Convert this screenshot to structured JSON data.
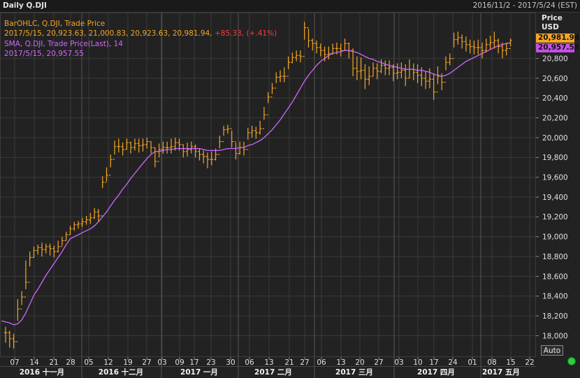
{
  "header": {
    "title": "Daily Q.DJI",
    "range": "2016/11/2 - 2017/5/24 (EST)"
  },
  "legend": {
    "ohlc_label": "BarOHLC, Q.DJI, Trade Price",
    "ohlc_values": "2017/5/15, 20,923.63, 21,000.83, 20,923.63, 20,981.94, ",
    "ohlc_change": "+85.33, (+.41%)",
    "sma_label": "SMA, Q.DJI, Trade Price(Last),  14",
    "sma_values": "2017/5/15, 20,957.55"
  },
  "axis": {
    "price_title": "Price",
    "currency": "USD",
    "auto_label": "Auto"
  },
  "badges": {
    "last_price": "20,981.94",
    "sma_price": "20,957.55"
  },
  "colors": {
    "ohlc": "#f5a623",
    "sma": "#d166ff",
    "positive_change": "#ff3b3b",
    "status": "#2ecc40"
  },
  "chart_data": {
    "type": "ohlc",
    "title": "Daily Q.DJI",
    "ylabel": "Price USD",
    "ylim": [
      17900,
      21150
    ],
    "y_ticks": [
      18000,
      18200,
      18400,
      18600,
      18800,
      19000,
      19200,
      19400,
      19600,
      19800,
      20000,
      20200,
      20400,
      20600,
      20800
    ],
    "x_ticks": [
      "07",
      "14",
      "21",
      "28",
      "05",
      "12",
      "19",
      "27",
      "03",
      "09",
      "17",
      "23",
      "30",
      "06",
      "13",
      "21",
      "27",
      "06",
      "13",
      "20",
      "27",
      "03",
      "10",
      "17",
      "24",
      "01",
      "08",
      "15",
      "22"
    ],
    "month_labels": [
      "2016 十一月",
      "2016 十二月",
      "2017 一月",
      "2017 二月",
      "2017 三月",
      "2017 四月",
      "2017 五月"
    ],
    "series": [
      {
        "name": "BarOHLC",
        "close": [
          18030,
          17970,
          17940,
          18270,
          18390,
          18540,
          18790,
          18860,
          18890,
          18870,
          18900,
          18880,
          18850,
          18900,
          18960,
          19020,
          19080,
          19120,
          19130,
          19150,
          19170,
          19190,
          19250,
          19210,
          19550,
          19620,
          19780,
          19910,
          19910,
          19880,
          19950,
          19900,
          19940,
          19920,
          19930,
          19960,
          19900,
          19760,
          19880,
          19900,
          19900,
          19910,
          19950,
          19930,
          19860,
          19880,
          19910,
          19860,
          19830,
          19810,
          19780,
          19780,
          19830,
          19960,
          20080,
          20090,
          19960,
          19840,
          19900,
          19880,
          20050,
          20070,
          20050,
          20090,
          20230,
          20410,
          20500,
          20610,
          20620,
          20620,
          20760,
          20810,
          20830,
          20820,
          21110,
          20980,
          20950,
          20910,
          20880,
          20840,
          20850,
          20900,
          20900,
          20880,
          20950,
          20880,
          20700,
          20670,
          20680,
          20590,
          20620,
          20700,
          20670,
          20730,
          20700,
          20710,
          20650,
          20660,
          20680,
          20600,
          20690,
          20660,
          20630,
          20600,
          20570,
          20590,
          20460,
          20620,
          20560,
          20760,
          20800,
          20990,
          21010,
          20970,
          20940,
          20920,
          20910,
          20910,
          20880,
          20940,
          20960,
          20980,
          20920,
          20880,
          20900,
          20982
        ],
        "high": [
          18090,
          18050,
          18020,
          18370,
          18450,
          18760,
          18850,
          18900,
          18920,
          18940,
          18930,
          18930,
          18910,
          18960,
          19000,
          19050,
          19110,
          19150,
          19160,
          19190,
          19210,
          19240,
          19290,
          19280,
          19610,
          19700,
          19830,
          19970,
          19990,
          19950,
          19990,
          19960,
          19990,
          19990,
          19990,
          20000,
          19960,
          19900,
          19940,
          19960,
          19960,
          19990,
          20000,
          19990,
          19930,
          19950,
          19960,
          19930,
          19890,
          19870,
          19850,
          19860,
          19890,
          20020,
          20120,
          20130,
          20070,
          19950,
          19960,
          19960,
          20100,
          20120,
          20110,
          20170,
          20310,
          20460,
          20550,
          20660,
          20680,
          20710,
          20820,
          20860,
          20880,
          20880,
          21170,
          21100,
          21000,
          20980,
          20950,
          20920,
          20920,
          20950,
          20960,
          20950,
          21000,
          20960,
          20900,
          20820,
          20810,
          20740,
          20720,
          20760,
          20750,
          20790,
          20780,
          20780,
          20740,
          20750,
          20760,
          20740,
          20790,
          20750,
          20740,
          20710,
          20670,
          20700,
          20650,
          20720,
          20650,
          20820,
          20850,
          21060,
          21070,
          21040,
          21020,
          20990,
          20980,
          20990,
          20960,
          21000,
          21030,
          21070,
          21000,
          20960,
          20960,
          21001
        ],
        "low": [
          17930,
          17880,
          17870,
          18150,
          18310,
          18470,
          18700,
          18790,
          18820,
          18800,
          18830,
          18810,
          18790,
          18840,
          18910,
          18960,
          19020,
          19060,
          19080,
          19100,
          19120,
          19130,
          19180,
          19150,
          19490,
          19560,
          19700,
          19830,
          19850,
          19820,
          19880,
          19840,
          19870,
          19850,
          19860,
          19890,
          19840,
          19700,
          19800,
          19840,
          19840,
          19840,
          19870,
          19870,
          19800,
          19810,
          19840,
          19800,
          19770,
          19740,
          19690,
          19720,
          19770,
          19890,
          20020,
          20040,
          19900,
          19780,
          19830,
          19820,
          19980,
          20000,
          19990,
          20030,
          20180,
          20350,
          20440,
          20550,
          20560,
          20560,
          20690,
          20750,
          20770,
          20760,
          20990,
          20910,
          20880,
          20850,
          20820,
          20770,
          20790,
          20840,
          20840,
          20820,
          20880,
          20800,
          20620,
          20580,
          20590,
          20490,
          20530,
          20620,
          20590,
          20650,
          20630,
          20630,
          20570,
          20590,
          20600,
          20520,
          20600,
          20580,
          20550,
          20520,
          20490,
          20500,
          20380,
          20540,
          20480,
          20680,
          20730,
          20910,
          20940,
          20900,
          20870,
          20850,
          20840,
          20840,
          20800,
          20860,
          20890,
          20900,
          20850,
          20800,
          20830,
          20924
        ]
      },
      {
        "name": "SMA 14",
        "values": [
          18140,
          18130,
          18110,
          18120,
          18160,
          18230,
          18320,
          18410,
          18470,
          18540,
          18610,
          18670,
          18730,
          18790,
          18850,
          18920,
          18980,
          19000,
          19020,
          19040,
          19060,
          19080,
          19110,
          19150,
          19200,
          19250,
          19310,
          19370,
          19420,
          19480,
          19530,
          19590,
          19640,
          19690,
          19740,
          19790,
          19830,
          19860,
          19860,
          19870,
          19880,
          19880,
          19890,
          19890,
          19890,
          19890,
          19890,
          19890,
          19890,
          19880,
          19870,
          19870,
          19870,
          19870,
          19880,
          19890,
          19890,
          19890,
          19900,
          19900,
          19920,
          19930,
          19950,
          19970,
          20000,
          20040,
          20080,
          20130,
          20180,
          20240,
          20300,
          20360,
          20430,
          20500,
          20570,
          20630,
          20680,
          20730,
          20770,
          20800,
          20830,
          20850,
          20860,
          20870,
          20880,
          20880,
          20870,
          20860,
          20840,
          20820,
          20800,
          20790,
          20770,
          20760,
          20740,
          20730,
          20720,
          20710,
          20700,
          20690,
          20690,
          20690,
          20680,
          20680,
          20670,
          20660,
          20640,
          20630,
          20620,
          20630,
          20650,
          20680,
          20710,
          20740,
          20770,
          20790,
          20810,
          20830,
          20850,
          20870,
          20890,
          20910,
          20930,
          20940,
          20950,
          20958
        ]
      }
    ]
  }
}
